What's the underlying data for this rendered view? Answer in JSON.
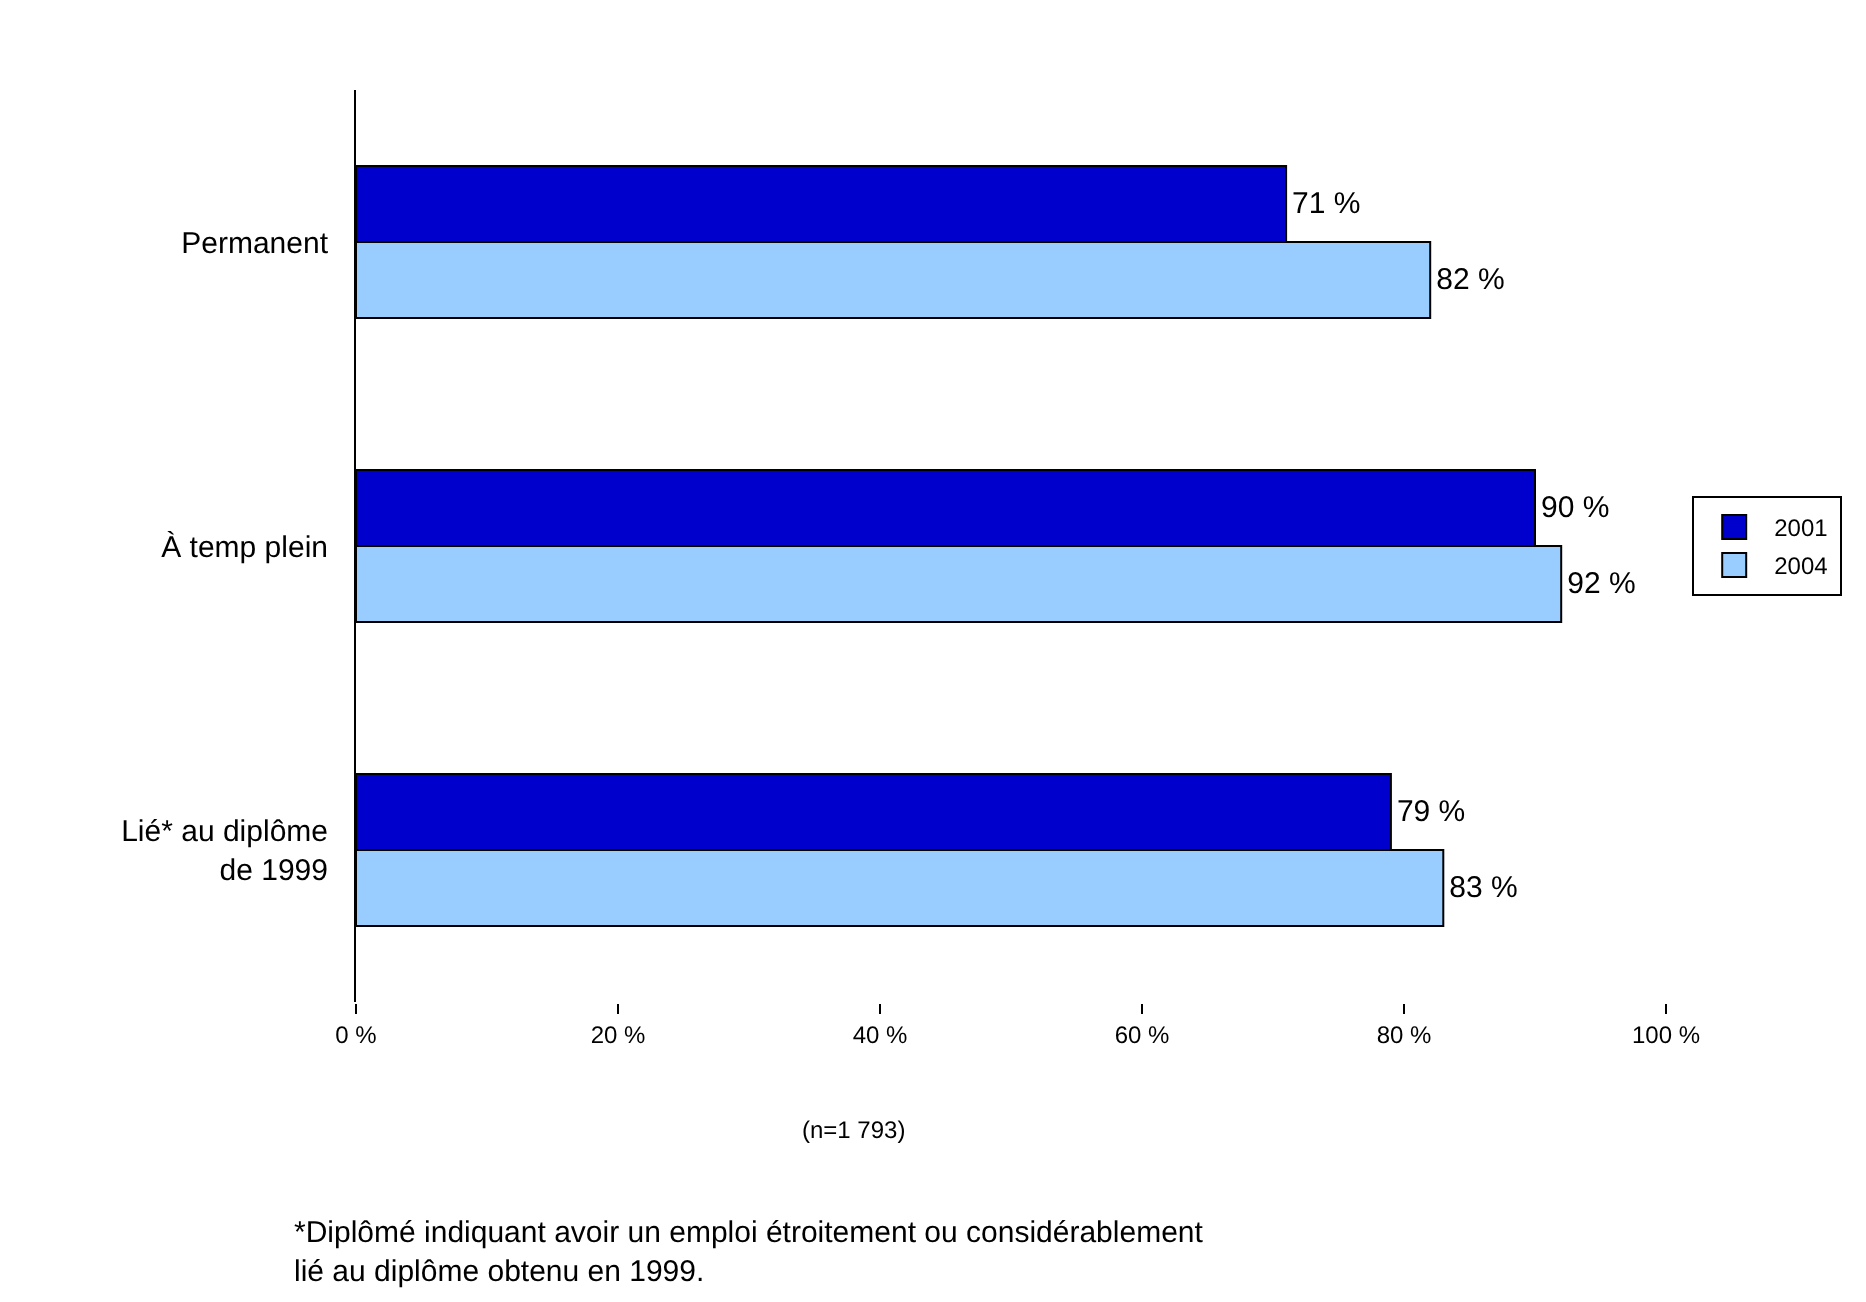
{
  "chart_data": {
    "type": "bar",
    "orientation": "horizontal",
    "categories": [
      "Permanent",
      "À temp plein",
      "Lié* au diplôme\nde 1999"
    ],
    "series": [
      {
        "name": "2001",
        "color": "#0000cc",
        "values": [
          71,
          90,
          79
        ],
        "value_labels": [
          "71 %",
          "90 %",
          "79 %"
        ]
      },
      {
        "name": "2004",
        "color": "#99ccff",
        "values": [
          82,
          92,
          83
        ],
        "value_labels": [
          "82 %",
          "92 %",
          "83 %"
        ]
      }
    ],
    "xlim": [
      0,
      100
    ],
    "xticks": [
      {
        "value": 0,
        "label": "0 %"
      },
      {
        "value": 20,
        "label": "20 %"
      },
      {
        "value": 40,
        "label": "40 %"
      },
      {
        "value": 60,
        "label": "60 %"
      },
      {
        "value": 80,
        "label": "80 %"
      },
      {
        "value": 100,
        "label": "100 %"
      }
    ],
    "legend": "right",
    "annotations": [
      "(n=1 793)",
      "*Diplômé indiquant avoir un emploi étroitement ou considérablement\nlié au diplôme obtenu en 1999."
    ]
  }
}
